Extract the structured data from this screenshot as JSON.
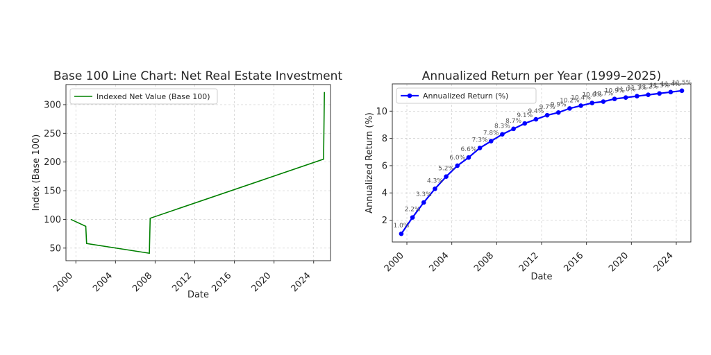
{
  "chart_data": [
    {
      "type": "line",
      "title": "Base 100 Line Chart: Net Real Estate Investment",
      "xlabel": "Date",
      "ylabel": "Index (Base 100)",
      "xlim": [
        1999.0,
        2025.7
      ],
      "ylim": [
        28,
        335
      ],
      "x_ticks": [
        "2000",
        "2004",
        "2008",
        "2012",
        "2016",
        "2020",
        "2024"
      ],
      "y_ticks": [
        "50",
        "100",
        "150",
        "200",
        "250",
        "300"
      ],
      "grid": true,
      "legend_position": "top-left",
      "series": [
        {
          "name": "Indexed Net Value (Base 100)",
          "color": "#008000",
          "x": [
            "1999-07",
            "2001-01",
            "2001-02",
            "2007-06",
            "2007-07",
            "2025-01",
            "2025-02"
          ],
          "y": [
            100,
            88,
            58,
            41,
            102,
            205,
            322
          ]
        }
      ]
    },
    {
      "type": "line",
      "title": "Annualized Return per Year (1999–2025)",
      "xlabel": "Date",
      "ylabel": "Annualized Return (%)",
      "xlim": [
        1998.7,
        2025.3
      ],
      "ylim": [
        0.4,
        12.0
      ],
      "x_ticks": [
        "2000",
        "2004",
        "2008",
        "2012",
        "2016",
        "2020",
        "2024"
      ],
      "y_ticks": [
        "2",
        "4",
        "6",
        "8",
        "10"
      ],
      "grid": true,
      "legend_position": "top-left",
      "series": [
        {
          "name": "Annualized Return (%)",
          "color": "#0000ff",
          "x": [
            "1999-07",
            "2000-07",
            "2001-07",
            "2002-07",
            "2003-07",
            "2004-07",
            "2005-07",
            "2006-07",
            "2007-07",
            "2008-07",
            "2009-07",
            "2010-07",
            "2011-07",
            "2012-07",
            "2013-07",
            "2014-07",
            "2015-07",
            "2016-07",
            "2017-07",
            "2018-07",
            "2019-07",
            "2020-07",
            "2021-07",
            "2022-07",
            "2023-07",
            "2024-07"
          ],
          "y": [
            1.0,
            2.2,
            3.3,
            4.3,
            5.2,
            6.0,
            6.6,
            7.3,
            7.8,
            8.3,
            8.7,
            9.1,
            9.4,
            9.7,
            9.9,
            10.2,
            10.4,
            10.6,
            10.7,
            10.9,
            11.0,
            11.1,
            11.2,
            11.3,
            11.4,
            11.5
          ],
          "labels": [
            "1.0%",
            "2.2%",
            "3.3%",
            "4.3%",
            "5.2%",
            "6.0%",
            "6.6%",
            "7.3%",
            "7.8%",
            "8.3%",
            "8.7%",
            "9.1%",
            "9.4%",
            "9.7%",
            "9.9%",
            "10.2%",
            "10.4%",
            "10.6%",
            "10.7%",
            "10.9%",
            "11.0%",
            "11.1%",
            "11.2%",
            "11.3%",
            "11.4%",
            "11.5%"
          ]
        }
      ]
    }
  ]
}
